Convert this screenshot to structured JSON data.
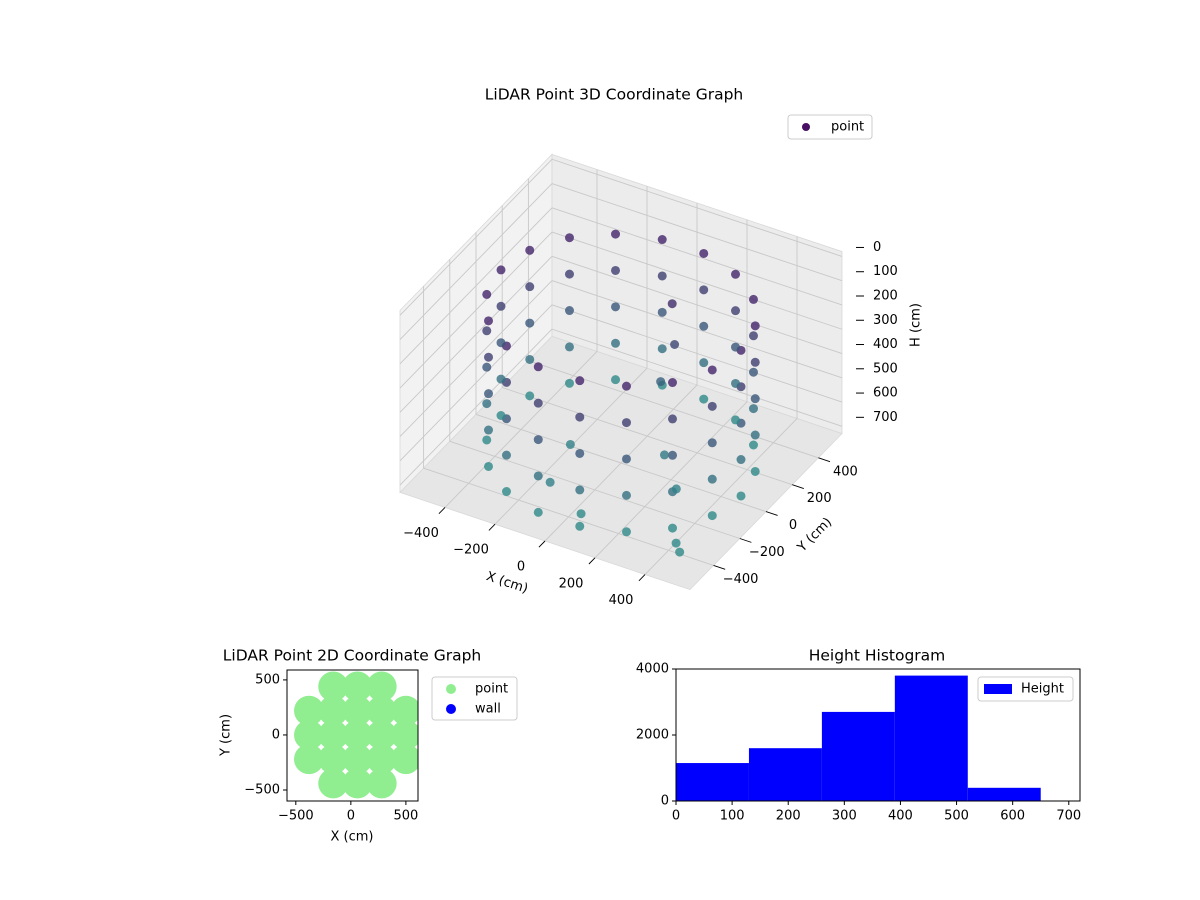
{
  "chart_data": [
    {
      "type": "scatter3d",
      "title": "LiDAR Point 3D Coordinate Graph",
      "x_label": "X (cm)",
      "y_label": "Y (cm)",
      "z_label": "H (cm)",
      "legend": "upper right",
      "xlim": [
        -580,
        580
      ],
      "ylim": [
        -580,
        580
      ],
      "zlim": [
        730,
        -20
      ],
      "xticks": [
        {
          "value": -400,
          "label": "−400"
        },
        {
          "value": -200,
          "label": "−200"
        },
        0,
        200,
        400
      ],
      "yticks": [
        {
          "value": -400,
          "label": "−400"
        },
        {
          "value": -200,
          "label": "−200"
        },
        0,
        200,
        400
      ],
      "zticks": [
        0,
        100,
        200,
        300,
        400,
        500,
        600,
        700
      ],
      "series": [
        {
          "name": "point",
          "cmap": [
            "#471063",
            "#2e8f8c"
          ],
          "x": [
            480,
            451,
            368,
            240,
            83,
            -83,
            -240,
            -368,
            -451,
            -480,
            -451,
            -368,
            -240,
            -83,
            83,
            240,
            368,
            451,
            480,
            451,
            368,
            240,
            83,
            -83,
            -240,
            -368,
            -451,
            -480,
            -451,
            -368,
            -240,
            -83,
            83,
            240,
            368,
            451,
            480,
            451,
            368,
            240,
            83,
            -83,
            -240,
            -368,
            -451,
            -480,
            -451,
            -368,
            -240,
            -83,
            83,
            240,
            368,
            451,
            480,
            451,
            368,
            240,
            83,
            -83,
            -240,
            -368,
            -451,
            -480,
            -451,
            -368,
            -240,
            -83,
            83,
            240,
            368,
            451,
            480,
            451,
            368,
            240,
            83,
            -83,
            -240,
            -368,
            -451,
            -480,
            -451,
            -368,
            -240,
            -83,
            83,
            240,
            368,
            451,
            100,
            120,
            80,
            -150,
            200,
            -100,
            50,
            300,
            430,
            460
          ],
          "y": [
            0,
            164,
            309,
            416,
            473,
            473,
            416,
            309,
            164,
            0,
            -164,
            -309,
            -416,
            -473,
            -473,
            -416,
            -309,
            -164,
            0,
            164,
            309,
            416,
            473,
            473,
            416,
            309,
            164,
            0,
            -164,
            -309,
            -416,
            -473,
            -473,
            -416,
            -309,
            -164,
            0,
            164,
            309,
            416,
            473,
            473,
            416,
            309,
            164,
            0,
            -164,
            -309,
            -416,
            -473,
            -473,
            -416,
            -309,
            -164,
            0,
            164,
            309,
            416,
            473,
            473,
            416,
            309,
            164,
            0,
            -164,
            -309,
            -416,
            -473,
            -473,
            -416,
            -309,
            -164,
            0,
            164,
            309,
            416,
            473,
            473,
            416,
            309,
            164,
            0,
            -164,
            -309,
            -416,
            -473,
            -473,
            -416,
            -309,
            -164,
            200,
            180,
            150,
            -100,
            -50,
            -350,
            -400,
            -150,
            -400,
            -430
          ],
          "values": [
            100,
            100,
            100,
            100,
            100,
            100,
            100,
            100,
            100,
            100,
            100,
            100,
            100,
            100,
            100,
            100,
            100,
            100,
            250,
            250,
            250,
            250,
            250,
            250,
            250,
            250,
            250,
            250,
            250,
            250,
            250,
            250,
            250,
            250,
            250,
            250,
            400,
            400,
            400,
            400,
            400,
            400,
            400,
            400,
            400,
            400,
            400,
            400,
            400,
            400,
            400,
            400,
            400,
            400,
            550,
            550,
            550,
            550,
            550,
            550,
            550,
            550,
            550,
            550,
            550,
            550,
            550,
            550,
            550,
            550,
            550,
            550,
            700,
            700,
            700,
            700,
            700,
            700,
            700,
            700,
            700,
            700,
            700,
            700,
            700,
            700,
            700,
            700,
            700,
            700,
            150,
            300,
            450,
            650,
            600,
            650,
            700,
            650,
            690,
            700
          ]
        }
      ]
    },
    {
      "type": "scatter",
      "title": "LiDAR Point 2D Coordinate Graph",
      "x_label": "X (cm)",
      "y_label": "Y (cm)",
      "legend": "outside right",
      "xlim": [
        -580,
        610
      ],
      "ylim": [
        -600,
        590
      ],
      "xticks": [
        {
          "value": -500,
          "label": "−500"
        },
        0,
        500
      ],
      "yticks": [
        {
          "value": -500,
          "label": "−500"
        },
        0,
        500
      ],
      "series": [
        {
          "name": "point",
          "color": "#90ee90",
          "x": [
            -160,
            60,
            280,
            -380,
            -160,
            60,
            280,
            500,
            -380,
            -160,
            60,
            280,
            500,
            -380,
            -160,
            60,
            280,
            500,
            -160,
            60,
            280
          ],
          "values": [
            -440,
            -440,
            -440,
            -220,
            -220,
            -220,
            -220,
            -220,
            0,
            0,
            0,
            0,
            0,
            220,
            220,
            220,
            220,
            220,
            440,
            440,
            440
          ]
        },
        {
          "name": "wall",
          "color": "#0000ff",
          "x": [],
          "values": []
        }
      ]
    },
    {
      "type": "histogram",
      "title": "Height Histogram",
      "name": "Height",
      "color": "#0000ff",
      "legend": "upper right",
      "bins": [
        0,
        130,
        260,
        390,
        520,
        650
      ],
      "values": [
        1150,
        1600,
        2700,
        3800,
        400
      ],
      "xlim": [
        0,
        720
      ],
      "ylim": [
        0,
        4000
      ],
      "xticks": [
        0,
        100,
        200,
        300,
        400,
        500,
        600,
        700
      ],
      "yticks": [
        0,
        2000,
        4000
      ]
    }
  ]
}
